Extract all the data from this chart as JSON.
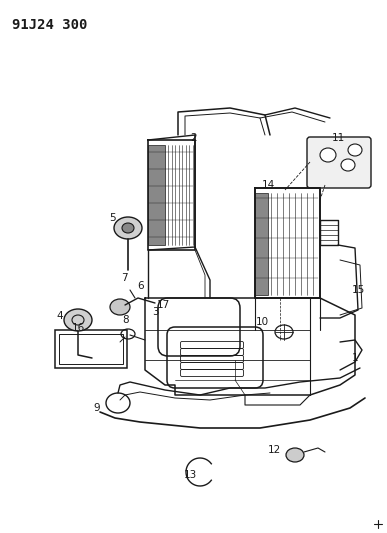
{
  "title": "91J24 300",
  "bg_color": "#ffffff",
  "lc": "#1a1a1a",
  "title_fontsize": 10,
  "label_fontsize": 7.5,
  "figsize": [
    3.87,
    5.33
  ],
  "dpi": 100
}
